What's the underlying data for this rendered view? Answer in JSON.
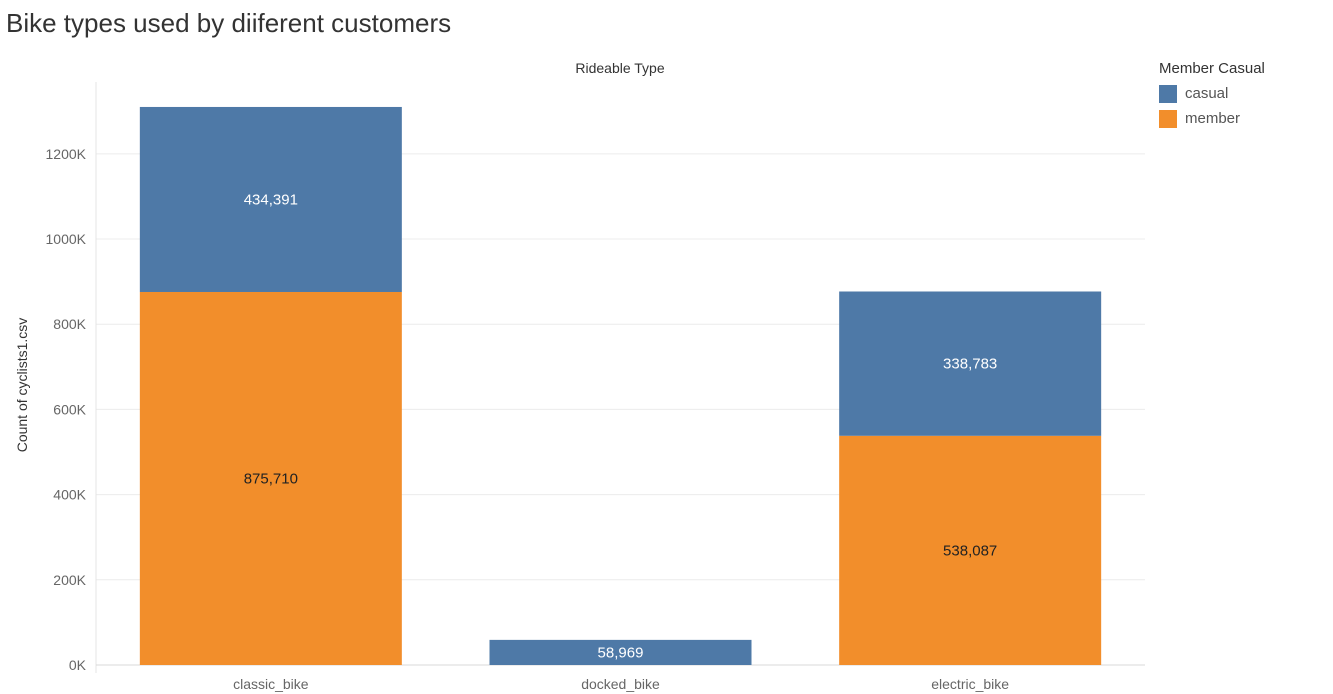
{
  "chart_data": {
    "type": "bar",
    "stacked": true,
    "title": "Bike types used by diiferent customers",
    "column_header": "Rideable Type",
    "ylabel": "Count of cyclists1.csv",
    "ylim": [
      0,
      1310000
    ],
    "yticks": [
      {
        "value": 0,
        "label": "0K"
      },
      {
        "value": 200000,
        "label": "200K"
      },
      {
        "value": 400000,
        "label": "400K"
      },
      {
        "value": 600000,
        "label": "600K"
      },
      {
        "value": 800000,
        "label": "800K"
      },
      {
        "value": 1000000,
        "label": "1000K"
      },
      {
        "value": 1200000,
        "label": "1200K"
      }
    ],
    "grid": true,
    "categories": [
      "classic_bike",
      "docked_bike",
      "electric_bike"
    ],
    "legend": {
      "title": "Member Casual",
      "placement": "top-right"
    },
    "series": [
      {
        "name": "member",
        "color": "#f28e2b",
        "label_color": "#222222",
        "values": [
          875710,
          0,
          538087
        ],
        "labels": [
          "875,710",
          "",
          "538,087"
        ]
      },
      {
        "name": "casual",
        "color": "#4e79a7",
        "label_color": "#ffffff",
        "values": [
          434391,
          58969,
          338783
        ],
        "labels": [
          "434,391",
          "58,969",
          "338,783"
        ]
      }
    ],
    "legend_order": [
      "casual",
      "member"
    ]
  }
}
